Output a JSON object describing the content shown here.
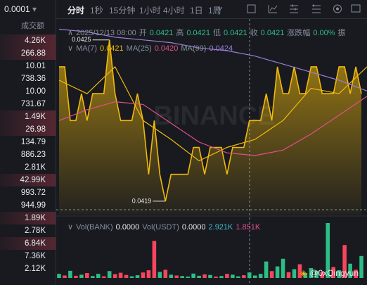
{
  "order_panel": {
    "precision": "0.0001",
    "column_label": "成交额",
    "amounts": [
      "4.26K",
      "266.88",
      "10.01",
      "738.36",
      "10.00",
      "731.67",
      "1.49K",
      "26.98",
      "134.79",
      "886.23",
      "2.81K",
      "42.99K",
      "993.72",
      "944.99",
      "1.89K",
      "2.78K",
      "6.84K",
      "7.36K",
      "2.12K"
    ]
  },
  "toolbar": {
    "intervals": [
      "分时",
      "1秒",
      "15分钟",
      "1小时",
      "4小时",
      "1日",
      "1周"
    ]
  },
  "ohlc": {
    "date": "2025/12/13 08:00",
    "items": [
      {
        "label": "开",
        "value": "0.0421"
      },
      {
        "label": "高",
        "value": "0.0421"
      },
      {
        "label": "低",
        "value": "0.0421"
      },
      {
        "label": "收",
        "value": "0.0421"
      },
      {
        "label": "涨跌幅",
        "value": "0.00%"
      },
      {
        "label": "振"
      }
    ]
  },
  "chart_data": {
    "type": "line",
    "color": "#f0b90b",
    "ylim": [
      0.04185,
      0.04257
    ],
    "values": [
      0.0424,
      0.0424,
      0.0422,
      0.0422,
      0.0423,
      0.0422,
      0.0423,
      0.0423,
      0.0423,
      0.0425,
      0.0423,
      0.0422,
      0.0422,
      0.0422,
      0.0423,
      0.0422,
      0.042,
      0.0422,
      0.042,
      0.0419,
      0.042,
      0.042,
      0.042,
      0.042,
      0.0421,
      0.0421,
      0.042,
      0.0421,
      0.0421,
      0.0421,
      0.042,
      0.0421,
      0.0421,
      0.0421,
      0.0422,
      0.0422,
      0.0422,
      0.0423,
      0.0422,
      0.0424,
      0.0423,
      0.0423,
      0.0424,
      0.0423,
      0.0423,
      0.0424,
      0.0424,
      0.0423,
      0.0423,
      0.0423,
      0.0424,
      0.0424,
      0.0423,
      0.0424,
      0.0423
    ],
    "series": [
      {
        "name": "MA(7)",
        "value": "0.0421",
        "color": "#f0b90b",
        "values": [
          0.04235,
          0.0423,
          0.0424,
          0.0422,
          0.04213,
          0.04205,
          0.0421,
          0.04213,
          0.0422,
          0.04232,
          0.0423,
          0.0424
        ]
      },
      {
        "name": "MA(25)",
        "value": "0.0420",
        "color": "#e0508c",
        "values": [
          0.0422,
          0.04224,
          0.04227,
          0.04226,
          0.04219,
          0.04212,
          0.04208,
          0.04207,
          0.04209,
          0.04215,
          0.04222,
          0.04229
        ]
      },
      {
        "name": "MA(99)",
        "value": "0.0424",
        "color": "#9b7fd4",
        "values": [
          0.04254,
          0.04253,
          0.04251,
          0.0425,
          0.04249,
          0.04247,
          0.04246,
          0.04244,
          0.04241,
          0.04238,
          0.04235,
          0.04231
        ]
      }
    ],
    "watermark": "BINANCE",
    "volume": {
      "ylim": [
        0,
        20000
      ],
      "up_color": "#2ebd85",
      "down_color": "#f6465d",
      "legend": [
        {
          "label": "Vol(BANK)",
          "value": "0.0000"
        },
        {
          "label": "Vol(USDT)",
          "value": "0.0000"
        },
        {
          "value": "2.921K",
          "color": "#3fc1c9"
        },
        {
          "value": "1.851K",
          "color": "#e0508c"
        }
      ],
      "values": [
        1500,
        900,
        2600,
        800,
        1200,
        1800,
        700,
        1500,
        600,
        2500,
        1400,
        1900,
        1100,
        600,
        1000,
        2000,
        2800,
        13500,
        2200,
        3000,
        1200,
        900,
        700,
        500,
        1600,
        800,
        1300,
        1100,
        500,
        700,
        1500,
        1200,
        600,
        1000,
        2000,
        900,
        1500,
        6000,
        2500,
        4200,
        7000,
        2100,
        3200,
        5000,
        1800,
        3600,
        2600,
        2200,
        20000,
        4000,
        2800,
        12000,
        5200,
        3000,
        8000
      ],
      "directions": [
        "up",
        "down",
        "up",
        "down",
        "up",
        "down",
        "up",
        "up",
        "down",
        "up",
        "down",
        "down",
        "down",
        "up",
        "up",
        "down",
        "down",
        "down",
        "up",
        "down",
        "up",
        "down",
        "up",
        "up",
        "up",
        "up",
        "down",
        "up",
        "down",
        "up",
        "down",
        "up",
        "up",
        "down",
        "up",
        "up",
        "up",
        "up",
        "down",
        "up",
        "up",
        "down",
        "up",
        "down",
        "up",
        "up",
        "up",
        "down",
        "up",
        "down",
        "up",
        "down",
        "up",
        "down",
        "up"
      ]
    },
    "credit": "@0xQingyun"
  }
}
